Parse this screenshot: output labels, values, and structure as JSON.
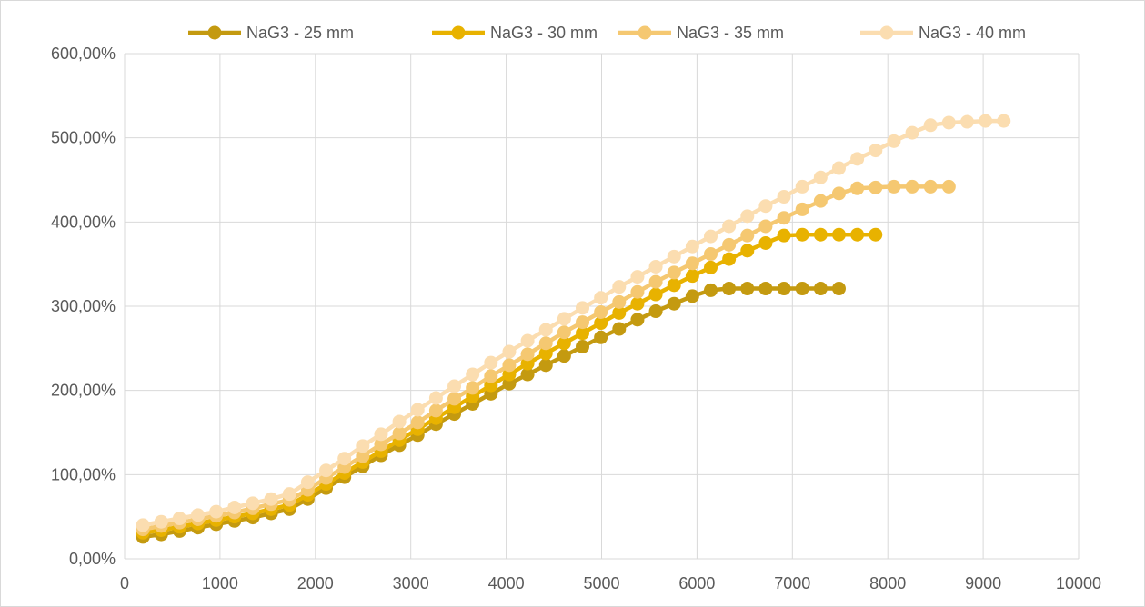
{
  "chart_data": {
    "type": "line",
    "title": "",
    "xlabel": "",
    "ylabel": "",
    "xlim": [
      0,
      10000
    ],
    "ylim": [
      0,
      6
    ],
    "x_ticks": [
      "0",
      "1000",
      "2000",
      "3000",
      "4000",
      "5000",
      "6000",
      "7000",
      "8000",
      "9000",
      "10000"
    ],
    "y_ticks": [
      "0,00%",
      "100,00%",
      "200,00%",
      "300,00%",
      "400,00%",
      "500,00%",
      "600,00%"
    ],
    "grid": "vertical and horizontal major gridlines",
    "legend_position": "top",
    "series": [
      {
        "name": "NaG3 - 25 mm",
        "color": "#C49A10",
        "x": [
          192,
          384,
          576,
          768,
          960,
          1152,
          1344,
          1536,
          1728,
          1920,
          2112,
          2304,
          2496,
          2688,
          2880,
          3072,
          3264,
          3456,
          3648,
          3840,
          4032,
          4224,
          4416,
          4608,
          4800,
          4992,
          5184,
          5376,
          5568,
          5760,
          5952,
          6144,
          6336,
          6528,
          6720,
          6912,
          7104,
          7296,
          7488
        ],
        "y": [
          0.26,
          0.29,
          0.33,
          0.37,
          0.41,
          0.45,
          0.49,
          0.54,
          0.59,
          0.71,
          0.84,
          0.97,
          1.1,
          1.23,
          1.35,
          1.47,
          1.6,
          1.72,
          1.84,
          1.96,
          2.08,
          2.19,
          2.3,
          2.41,
          2.52,
          2.63,
          2.73,
          2.84,
          2.94,
          3.03,
          3.12,
          3.19,
          3.21,
          3.21,
          3.21,
          3.21,
          3.21,
          3.21,
          3.21
        ]
      },
      {
        "name": "NaG3 - 30 mm",
        "color": "#E8B200",
        "x": [
          192,
          384,
          576,
          768,
          960,
          1152,
          1344,
          1536,
          1728,
          1920,
          2112,
          2304,
          2496,
          2688,
          2880,
          3072,
          3264,
          3456,
          3648,
          3840,
          4032,
          4224,
          4416,
          4608,
          4800,
          4992,
          5184,
          5376,
          5568,
          5760,
          5952,
          6144,
          6336,
          6528,
          6720,
          6912,
          7104,
          7296,
          7488,
          7680,
          7872
        ],
        "y": [
          0.31,
          0.34,
          0.38,
          0.42,
          0.46,
          0.5,
          0.54,
          0.59,
          0.64,
          0.76,
          0.89,
          1.02,
          1.15,
          1.28,
          1.41,
          1.54,
          1.67,
          1.8,
          1.93,
          2.06,
          2.19,
          2.32,
          2.44,
          2.56,
          2.68,
          2.8,
          2.92,
          3.03,
          3.14,
          3.25,
          3.36,
          3.46,
          3.56,
          3.66,
          3.75,
          3.84,
          3.85,
          3.85,
          3.85,
          3.85,
          3.85
        ]
      },
      {
        "name": "NaG3 - 35 mm",
        "color": "#F5C871",
        "x": [
          192,
          384,
          576,
          768,
          960,
          1152,
          1344,
          1536,
          1728,
          1920,
          2112,
          2304,
          2496,
          2688,
          2880,
          3072,
          3264,
          3456,
          3648,
          3840,
          4032,
          4224,
          4416,
          4608,
          4800,
          4992,
          5184,
          5376,
          5568,
          5760,
          5952,
          6144,
          6336,
          6528,
          6720,
          6912,
          7104,
          7296,
          7488,
          7680,
          7872,
          8064,
          8256,
          8448,
          8640
        ],
        "y": [
          0.35,
          0.39,
          0.43,
          0.47,
          0.51,
          0.55,
          0.6,
          0.65,
          0.7,
          0.82,
          0.96,
          1.09,
          1.22,
          1.36,
          1.49,
          1.62,
          1.76,
          1.9,
          2.03,
          2.17,
          2.3,
          2.43,
          2.56,
          2.69,
          2.81,
          2.93,
          3.05,
          3.17,
          3.29,
          3.4,
          3.51,
          3.62,
          3.73,
          3.84,
          3.95,
          4.05,
          4.15,
          4.25,
          4.34,
          4.4,
          4.41,
          4.42,
          4.42,
          4.42,
          4.42
        ]
      },
      {
        "name": "NaG3 - 40 mm",
        "color": "#FBDDB0",
        "x": [
          192,
          384,
          576,
          768,
          960,
          1152,
          1344,
          1536,
          1728,
          1920,
          2112,
          2304,
          2496,
          2688,
          2880,
          3072,
          3264,
          3456,
          3648,
          3840,
          4032,
          4224,
          4416,
          4608,
          4800,
          4992,
          5184,
          5376,
          5568,
          5760,
          5952,
          6144,
          6336,
          6528,
          6720,
          6912,
          7104,
          7296,
          7488,
          7680,
          7872,
          8064,
          8256,
          8448,
          8640,
          8832,
          9024,
          9216
        ],
        "y": [
          0.4,
          0.44,
          0.48,
          0.52,
          0.56,
          0.61,
          0.66,
          0.71,
          0.77,
          0.91,
          1.05,
          1.19,
          1.34,
          1.48,
          1.63,
          1.77,
          1.91,
          2.05,
          2.19,
          2.33,
          2.46,
          2.59,
          2.72,
          2.85,
          2.98,
          3.1,
          3.23,
          3.35,
          3.47,
          3.59,
          3.71,
          3.83,
          3.95,
          4.07,
          4.19,
          4.3,
          4.42,
          4.53,
          4.64,
          4.75,
          4.85,
          4.96,
          5.06,
          5.15,
          5.18,
          5.19,
          5.2,
          5.2
        ]
      }
    ]
  }
}
